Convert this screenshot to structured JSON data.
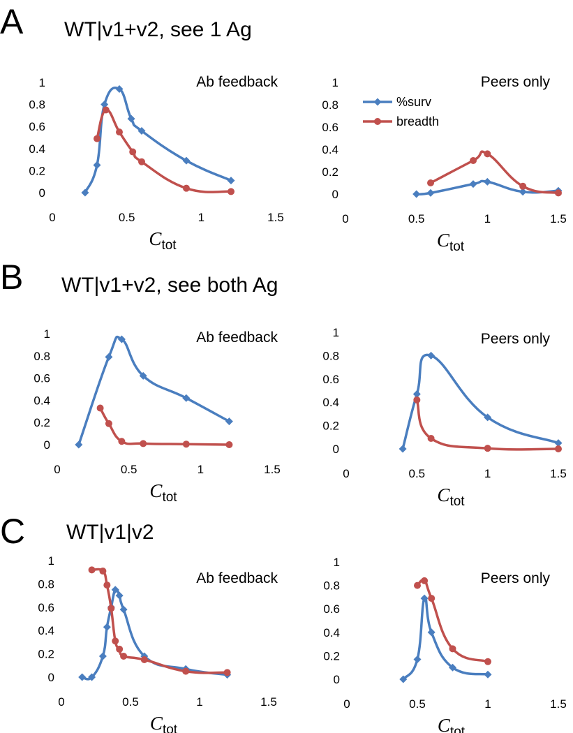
{
  "colors": {
    "surv": "#4a7ebf",
    "breadth": "#c0504d",
    "axis": "#000000"
  },
  "legend": {
    "surv": "%surv",
    "breadth": "breadth"
  },
  "panels": [
    {
      "letter": "A",
      "title": "WT|v1+v2, see 1 Ag"
    },
    {
      "letter": "B",
      "title": "WT|v1+v2, see both Ag"
    },
    {
      "letter": "C",
      "title": "WT|v1|v2"
    }
  ],
  "axis_text": {
    "xlabel_main": "C",
    "xlabel_sub": "tot"
  },
  "chart_data": [
    {
      "id": "A-left",
      "type": "line",
      "annotation": "Ab feedback",
      "xlim": [
        0,
        1.5
      ],
      "ylim": [
        0,
        1
      ],
      "xticks": [
        "0",
        "0.5",
        "1",
        "1.5"
      ],
      "yticks": [
        "0",
        "0.2",
        "0.4",
        "0.6",
        "0.8",
        "1"
      ],
      "series": [
        {
          "name": "%surv",
          "marker": "diamond",
          "x": [
            0.22,
            0.3,
            0.35,
            0.45,
            0.53,
            0.6,
            0.9,
            1.2
          ],
          "y": [
            0.0,
            0.25,
            0.8,
            0.94,
            0.67,
            0.56,
            0.29,
            0.11
          ]
        },
        {
          "name": "breadth",
          "marker": "circle",
          "x": [
            0.3,
            0.36,
            0.45,
            0.54,
            0.6,
            0.9,
            1.2
          ],
          "y": [
            0.49,
            0.75,
            0.55,
            0.37,
            0.28,
            0.04,
            0.01
          ]
        }
      ]
    },
    {
      "id": "A-right",
      "type": "line",
      "annotation": "Peers only",
      "legend": true,
      "xlim": [
        0,
        1.5
      ],
      "ylim": [
        0,
        1
      ],
      "xticks": [
        "0",
        "0.5",
        "1",
        "1.5"
      ],
      "yticks": [
        "0",
        "0.2",
        "0.4",
        "0.6",
        "0.8",
        "1"
      ],
      "series": [
        {
          "name": "%surv",
          "marker": "diamond",
          "x": [
            0.5,
            0.6,
            0.9,
            1.0,
            1.25,
            1.5
          ],
          "y": [
            0.0,
            0.01,
            0.09,
            0.11,
            0.02,
            0.03
          ]
        },
        {
          "name": "breadth",
          "marker": "circle",
          "x": [
            0.6,
            0.9,
            1.0,
            1.25,
            1.5
          ],
          "y": [
            0.1,
            0.3,
            0.36,
            0.07,
            0.01
          ]
        }
      ]
    },
    {
      "id": "B-left",
      "type": "line",
      "annotation": "Ab feedback",
      "xlim": [
        0,
        1.5
      ],
      "ylim": [
        0,
        1
      ],
      "xticks": [
        "0",
        "0.5",
        "1",
        "1.5"
      ],
      "yticks": [
        "0",
        "0.2",
        "0.4",
        "0.6",
        "0.8",
        "1"
      ],
      "series": [
        {
          "name": "%surv",
          "marker": "diamond",
          "x": [
            0.15,
            0.36,
            0.45,
            0.6,
            0.9,
            1.2
          ],
          "y": [
            0.0,
            0.79,
            0.95,
            0.62,
            0.42,
            0.21
          ]
        },
        {
          "name": "breadth",
          "marker": "circle",
          "x": [
            0.3,
            0.36,
            0.45,
            0.6,
            0.9,
            1.2
          ],
          "y": [
            0.33,
            0.19,
            0.03,
            0.01,
            0.005,
            0.0
          ]
        }
      ]
    },
    {
      "id": "B-right",
      "type": "line",
      "annotation": "Peers only",
      "xlim": [
        0,
        1.5
      ],
      "ylim": [
        0,
        1
      ],
      "xticks": [
        "0",
        "0.5",
        "1",
        "1.5"
      ],
      "yticks": [
        "0",
        "0.2",
        "0.4",
        "0.6",
        "0.8",
        "1"
      ],
      "series": [
        {
          "name": "%surv",
          "marker": "diamond",
          "x": [
            0.4,
            0.5,
            0.6,
            1.0,
            1.5
          ],
          "y": [
            0.0,
            0.47,
            0.8,
            0.27,
            0.05
          ]
        },
        {
          "name": "breadth",
          "marker": "circle",
          "x": [
            0.5,
            0.6,
            1.0,
            1.5
          ],
          "y": [
            0.42,
            0.09,
            0.005,
            0.0
          ]
        }
      ]
    },
    {
      "id": "C-left",
      "type": "line",
      "annotation": "Ab feedback",
      "xlim": [
        0,
        1.5
      ],
      "ylim": [
        0,
        1
      ],
      "xticks": [
        "0",
        "0.5",
        "1",
        "1.5"
      ],
      "yticks": [
        "0",
        "0.2",
        "0.4",
        "0.6",
        "0.8",
        "1"
      ],
      "series": [
        {
          "name": "%surv",
          "marker": "diamond",
          "x": [
            0.15,
            0.22,
            0.3,
            0.33,
            0.36,
            0.39,
            0.42,
            0.45,
            0.6,
            0.9,
            1.2
          ],
          "y": [
            0.0,
            0.0,
            0.18,
            0.43,
            0.6,
            0.75,
            0.7,
            0.58,
            0.18,
            0.07,
            0.02
          ]
        },
        {
          "name": "breadth",
          "marker": "circle",
          "x": [
            0.22,
            0.3,
            0.33,
            0.36,
            0.39,
            0.42,
            0.45,
            0.6,
            0.9,
            1.2
          ],
          "y": [
            0.92,
            0.91,
            0.79,
            0.59,
            0.31,
            0.24,
            0.18,
            0.15,
            0.05,
            0.04
          ]
        }
      ]
    },
    {
      "id": "C-right",
      "type": "line",
      "annotation": "Peers only",
      "xlim": [
        0,
        1.5
      ],
      "ylim": [
        0,
        1
      ],
      "xticks": [
        "0",
        "0.5",
        "1",
        "1.5"
      ],
      "yticks": [
        "0",
        "0.2",
        "0.4",
        "0.6",
        "0.8",
        "1"
      ],
      "series": [
        {
          "name": "%surv",
          "marker": "diamond",
          "x": [
            0.4,
            0.5,
            0.55,
            0.6,
            0.75,
            1.0
          ],
          "y": [
            0.0,
            0.17,
            0.69,
            0.4,
            0.1,
            0.04
          ]
        },
        {
          "name": "breadth",
          "marker": "circle",
          "x": [
            0.5,
            0.55,
            0.6,
            0.75,
            1.0
          ],
          "y": [
            0.8,
            0.84,
            0.69,
            0.26,
            0.15
          ]
        }
      ]
    }
  ]
}
